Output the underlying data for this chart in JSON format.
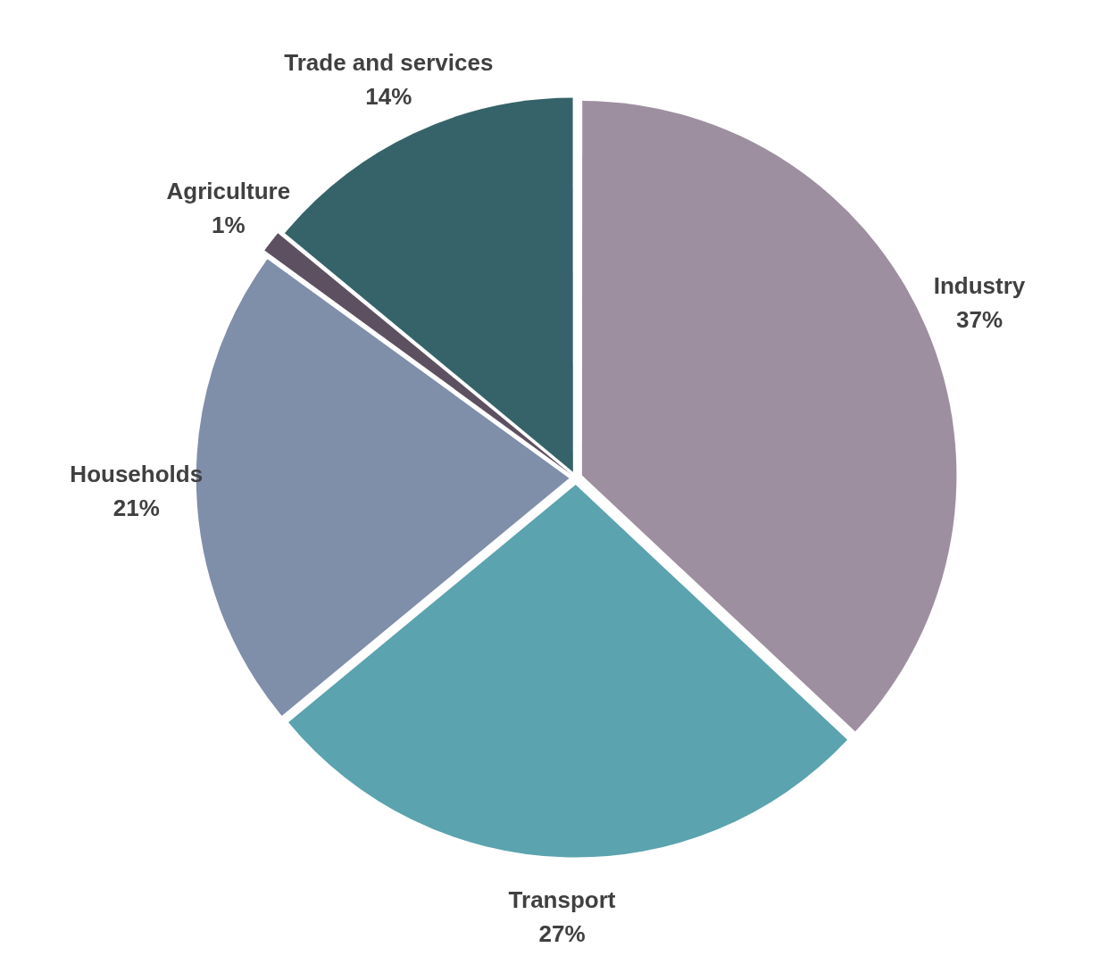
{
  "chart_data": {
    "type": "pie",
    "categories": [
      "Industry",
      "Transport",
      "Households",
      "Agriculture",
      "Trade and services"
    ],
    "values": [
      37,
      27,
      21,
      1,
      14
    ],
    "colors": [
      "#9e8fa0",
      "#5ba3ae",
      "#7f8ea9",
      "#5d5060",
      "#356369"
    ],
    "value_labels": [
      "37%",
      "27%",
      "21%",
      "1%",
      "14%"
    ],
    "legend": false
  }
}
